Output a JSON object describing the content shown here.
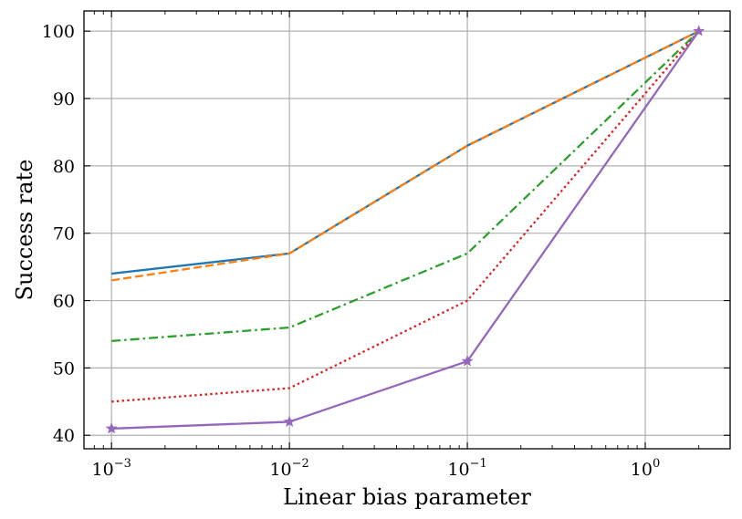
{
  "chart_data": {
    "type": "line",
    "xlabel": "Linear bias parameter",
    "ylabel": "Success rate",
    "x_scale": "log",
    "xlim": [
      0.0007,
      3.0
    ],
    "ylim": [
      38,
      103
    ],
    "grid": true,
    "x_ticks": [
      {
        "value": 0.001,
        "base": "10",
        "exp": "−3"
      },
      {
        "value": 0.01,
        "base": "10",
        "exp": "−2"
      },
      {
        "value": 0.1,
        "base": "10",
        "exp": "−1"
      },
      {
        "value": 1,
        "base": "10",
        "exp": "0"
      }
    ],
    "y_ticks": [
      40,
      50,
      60,
      70,
      80,
      90,
      100
    ],
    "x": [
      0.001,
      0.01,
      0.1,
      2
    ],
    "series": [
      {
        "values": [
          64,
          67,
          83,
          100
        ],
        "color": "#1f77b4",
        "dash": "solid",
        "marker": "none"
      },
      {
        "values": [
          63,
          67,
          83,
          100
        ],
        "color": "#ff7f0e",
        "dash": "dashed",
        "marker": "none"
      },
      {
        "values": [
          54,
          56,
          67,
          100
        ],
        "color": "#2ca02c",
        "dash": "dashdot",
        "marker": "none"
      },
      {
        "values": [
          45,
          47,
          60,
          100
        ],
        "color": "#d62728",
        "dash": "dotted",
        "marker": "none"
      },
      {
        "values": [
          41,
          42,
          51,
          100
        ],
        "color": "#9467bd",
        "dash": "solid",
        "marker": "star"
      }
    ]
  }
}
